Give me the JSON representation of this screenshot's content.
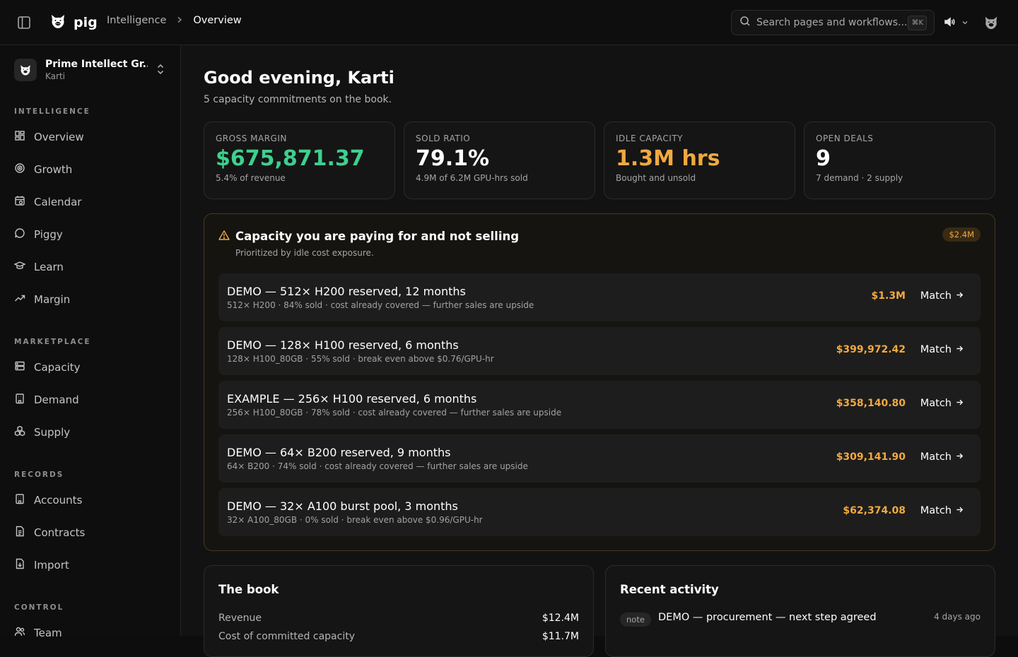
{
  "header": {
    "brand": "pig",
    "breadcrumb": [
      "Intelligence",
      "Overview"
    ],
    "search_placeholder": "Search pages and workflows...",
    "search_shortcut": "⌘K"
  },
  "sidebar": {
    "org_name": "Prime Intellect Gr...",
    "org_user": "Karti",
    "sections": {
      "intelligence": "INTELLIGENCE",
      "marketplace": "MARKETPLACE",
      "records": "RECORDS",
      "control": "CONTROL"
    },
    "items": {
      "overview": "Overview",
      "growth": "Growth",
      "calendar": "Calendar",
      "piggy": "Piggy",
      "learn": "Learn",
      "margin": "Margin",
      "capacity": "Capacity",
      "demand": "Demand",
      "supply": "Supply",
      "accounts": "Accounts",
      "contracts": "Contracts",
      "import": "Import",
      "team": "Team"
    }
  },
  "main": {
    "greeting": "Good evening, Karti",
    "subtitle": "5 capacity commitments on the book.",
    "kpis": [
      {
        "label": "GROSS MARGIN",
        "value": "$675,871.37",
        "caption": "5.4% of revenue",
        "color": "#3ecf8e"
      },
      {
        "label": "SOLD RATIO",
        "value": "79.1%",
        "caption": "4.9M of 6.2M GPU-hrs sold",
        "color": "#ffffff"
      },
      {
        "label": "IDLE CAPACITY",
        "value": "1.3M hrs",
        "caption": "Bought and unsold",
        "color": "#f0a940"
      },
      {
        "label": "OPEN DEALS",
        "value": "9",
        "caption": "7 demand · 2 supply",
        "color": "#ffffff"
      }
    ],
    "alert": {
      "title": "Capacity you are paying for and not selling",
      "subtitle": "Prioritized by idle cost exposure.",
      "badge": "$2.4M",
      "match_label": "Match",
      "rows": [
        {
          "title": "DEMO — 512× H200 reserved, 12 months",
          "detail": "512× H200 · 84% sold · cost already covered — further sales are upside",
          "amount": "$1.3M"
        },
        {
          "title": "DEMO — 128× H100 reserved, 6 months",
          "detail": "128× H100_80GB · 55% sold · break even above $0.76/GPU-hr",
          "amount": "$399,972.42"
        },
        {
          "title": "EXAMPLE — 256× H100 reserved, 6 months",
          "detail": "256× H100_80GB · 78% sold · cost already covered — further sales are upside",
          "amount": "$358,140.80"
        },
        {
          "title": "DEMO — 64× B200 reserved, 9 months",
          "detail": "64× B200 · 74% sold · cost already covered — further sales are upside",
          "amount": "$309,141.90"
        },
        {
          "title": "DEMO — 32× A100 burst pool, 3 months",
          "detail": "32× A100_80GB · 0% sold · break even above $0.96/GPU-hr",
          "amount": "$62,374.08"
        }
      ]
    },
    "book": {
      "title": "The book",
      "revenue_label": "Revenue",
      "revenue_value": "$12.4M",
      "cost_label": "Cost of committed capacity",
      "cost_value": "$11.7M"
    },
    "activity": {
      "title": "Recent activity",
      "tag": "note",
      "text": "DEMO — procurement — next step agreed",
      "time": "4 days ago"
    }
  }
}
